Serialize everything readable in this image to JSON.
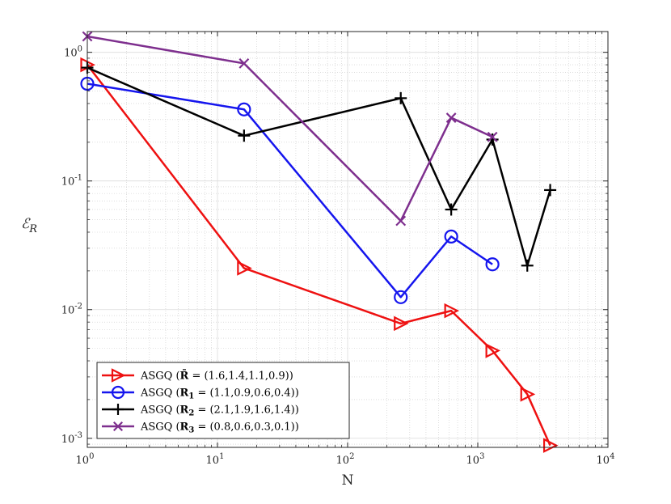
{
  "chart_data": {
    "type": "line",
    "xscale": "log",
    "yscale": "log",
    "xlim": [
      1,
      10000
    ],
    "ylim": [
      0.00085,
      1.45
    ],
    "xlabel": "N",
    "ylabel": "ℰ",
    "ylabel_sub": "R",
    "grid": true,
    "legend_position": "bottom-left",
    "x_ticks": [
      {
        "value": 1,
        "base": "10",
        "exp": "0"
      },
      {
        "value": 10,
        "base": "10",
        "exp": "1"
      },
      {
        "value": 100,
        "base": "10",
        "exp": "2"
      },
      {
        "value": 1000,
        "base": "10",
        "exp": "3"
      },
      {
        "value": 10000,
        "base": "10",
        "exp": "4"
      }
    ],
    "y_ticks": [
      {
        "value": 0.001,
        "base": "10",
        "exp": "-3"
      },
      {
        "value": 0.01,
        "base": "10",
        "exp": "-2"
      },
      {
        "value": 0.1,
        "base": "10",
        "exp": "-1"
      },
      {
        "value": 1,
        "base": "10",
        "exp": "0"
      }
    ],
    "series": [
      {
        "name": "ASGQ (R̄ = (1.6,1.4,1.1,0.9))",
        "legend_prefix": "ASGQ (",
        "legend_sym": "R̄",
        "legend_sub": "",
        "legend_suffix": " = (1.6,1.4,1.1,0.9))",
        "color": "#ee1111",
        "marker": "triangle-right",
        "x": [
          1,
          16,
          256,
          625,
          1296,
          2401,
          3600
        ],
        "y": [
          0.8,
          0.021,
          0.0078,
          0.0098,
          0.0048,
          0.0022,
          0.00088
        ]
      },
      {
        "name": "ASGQ (R1 = (1.1,0.9,0.6,0.4))",
        "legend_prefix": "ASGQ (",
        "legend_sym": "R",
        "legend_sub": "1",
        "legend_suffix": " = (1.1,0.9,0.6,0.4))",
        "color": "#1515ee",
        "marker": "circle",
        "x": [
          1,
          16,
          256,
          625,
          1296
        ],
        "y": [
          0.57,
          0.36,
          0.0125,
          0.037,
          0.0225
        ]
      },
      {
        "name": "ASGQ (R2 = (2.1,1.9,1.6,1.4))",
        "legend_prefix": "ASGQ (",
        "legend_sym": "R",
        "legend_sub": "2",
        "legend_suffix": " = (2.1,1.9,1.6,1.4))",
        "color": "#000000",
        "marker": "plus",
        "x": [
          1,
          16,
          256,
          625,
          1296,
          2401,
          3600
        ],
        "y": [
          0.76,
          0.225,
          0.44,
          0.06,
          0.21,
          0.022,
          0.085
        ]
      },
      {
        "name": "ASGQ (R3 = (0.8,0.6,0.3,0.1))",
        "legend_prefix": "ASGQ (",
        "legend_sym": "R",
        "legend_sub": "3",
        "legend_suffix": " = (0.8,0.6,0.3,0.1))",
        "color": "#7e2f8e",
        "marker": "x",
        "x": [
          1,
          16,
          256,
          625,
          1296
        ],
        "y": [
          1.33,
          0.82,
          0.049,
          0.31,
          0.22
        ]
      }
    ]
  }
}
